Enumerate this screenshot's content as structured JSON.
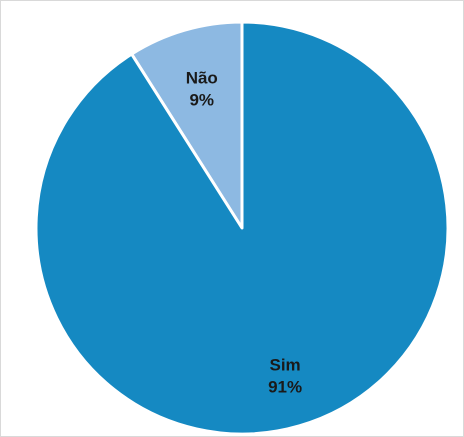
{
  "chart_data": {
    "type": "pie",
    "title": "",
    "slices": [
      {
        "label": "Não",
        "value": 9,
        "value_label": "9%",
        "color": "#8DB9E2"
      },
      {
        "label": "Sim",
        "value": 91,
        "value_label": "91%",
        "color": "#1589C2"
      }
    ],
    "start_angle_deg": 0,
    "direction": "counterclockwise",
    "separator_color": "#ffffff",
    "legend": "none"
  }
}
